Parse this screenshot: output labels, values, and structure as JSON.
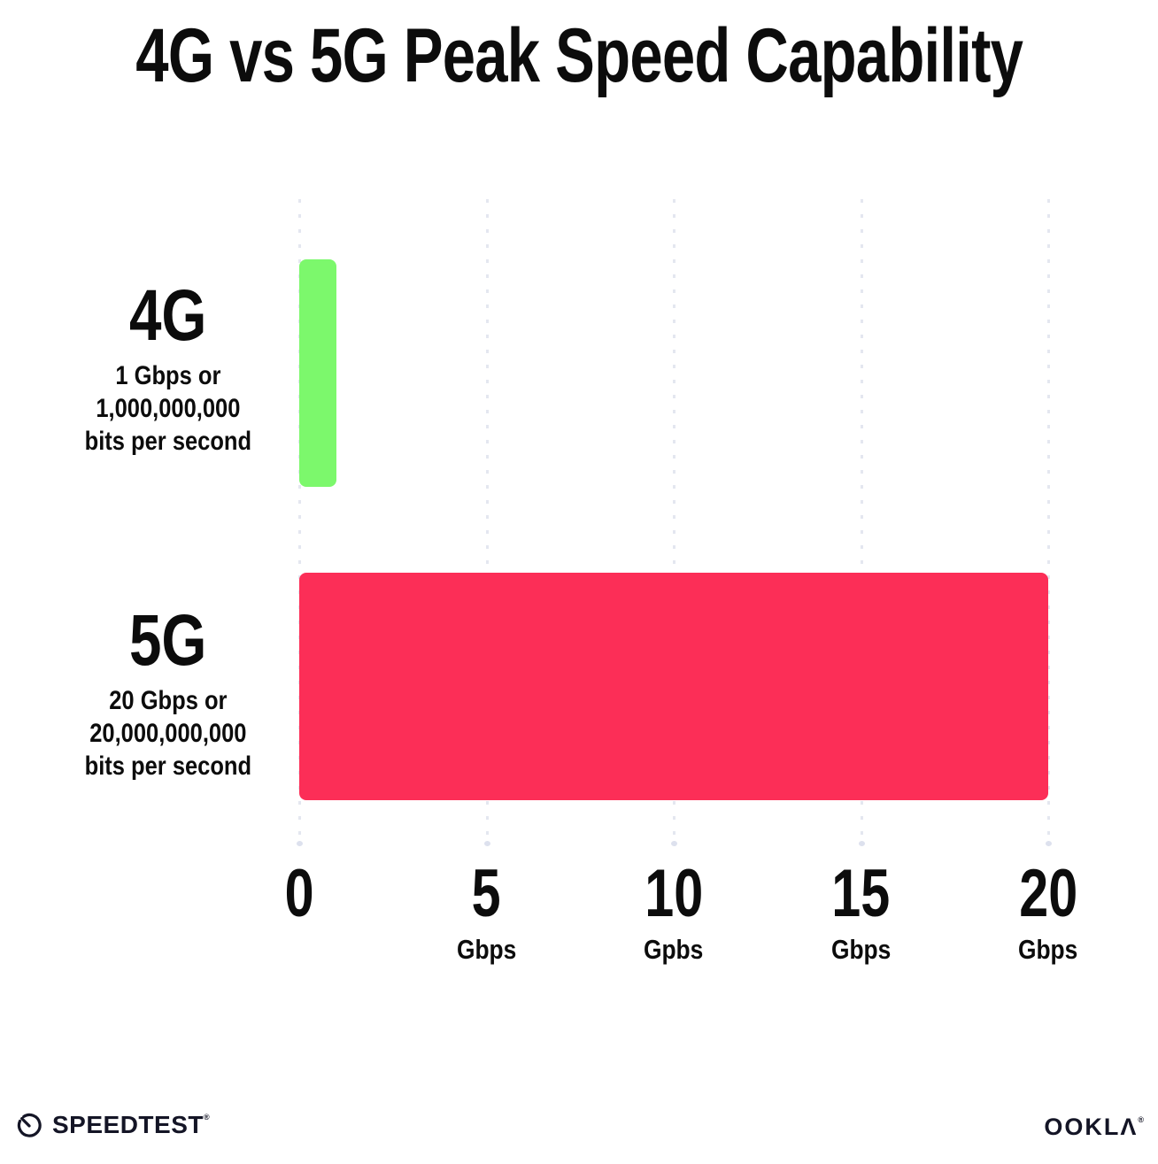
{
  "title": "4G vs 5G Peak Speed Capability",
  "chart_data": {
    "type": "bar",
    "orientation": "horizontal",
    "title": "4G vs 5G Peak Speed Capability",
    "xlabel": "Gbps",
    "ylabel": "",
    "xlim": [
      0,
      20
    ],
    "grid": "dotted-vertical-gridlines",
    "legend": "none",
    "categories": [
      "4G",
      "5G"
    ],
    "values": [
      1,
      20
    ],
    "bars": [
      {
        "label": "4G",
        "value": 1,
        "color": "#7cf86c",
        "sub": [
          "1 Gbps or",
          "1,000,000,000",
          "bits per second"
        ]
      },
      {
        "label": "5G",
        "value": 20,
        "color": "#fc2e57",
        "sub": [
          "20 Gbps or",
          "20,000,000,000",
          "bits per second"
        ]
      }
    ],
    "x_ticks": [
      {
        "value": "0",
        "unit": ""
      },
      {
        "value": "5",
        "unit": "Gbps"
      },
      {
        "value": "10",
        "unit": "Gpbs"
      },
      {
        "value": "15",
        "unit": "Gbps"
      },
      {
        "value": "20",
        "unit": "Gbps"
      }
    ]
  },
  "footer": {
    "speedtest_label": "SPEEDTEST",
    "speedtest_trademark": "®",
    "ookla_label": "OOKLΛ",
    "ookla_trademark": "®"
  },
  "colors": {
    "bar_4g": "#7cf86c",
    "bar_5g": "#fc2e57",
    "gridline_dots": "#e4e7f0",
    "text": "#0c0c0c",
    "footer_text": "#141526",
    "background": "#ffffff"
  }
}
